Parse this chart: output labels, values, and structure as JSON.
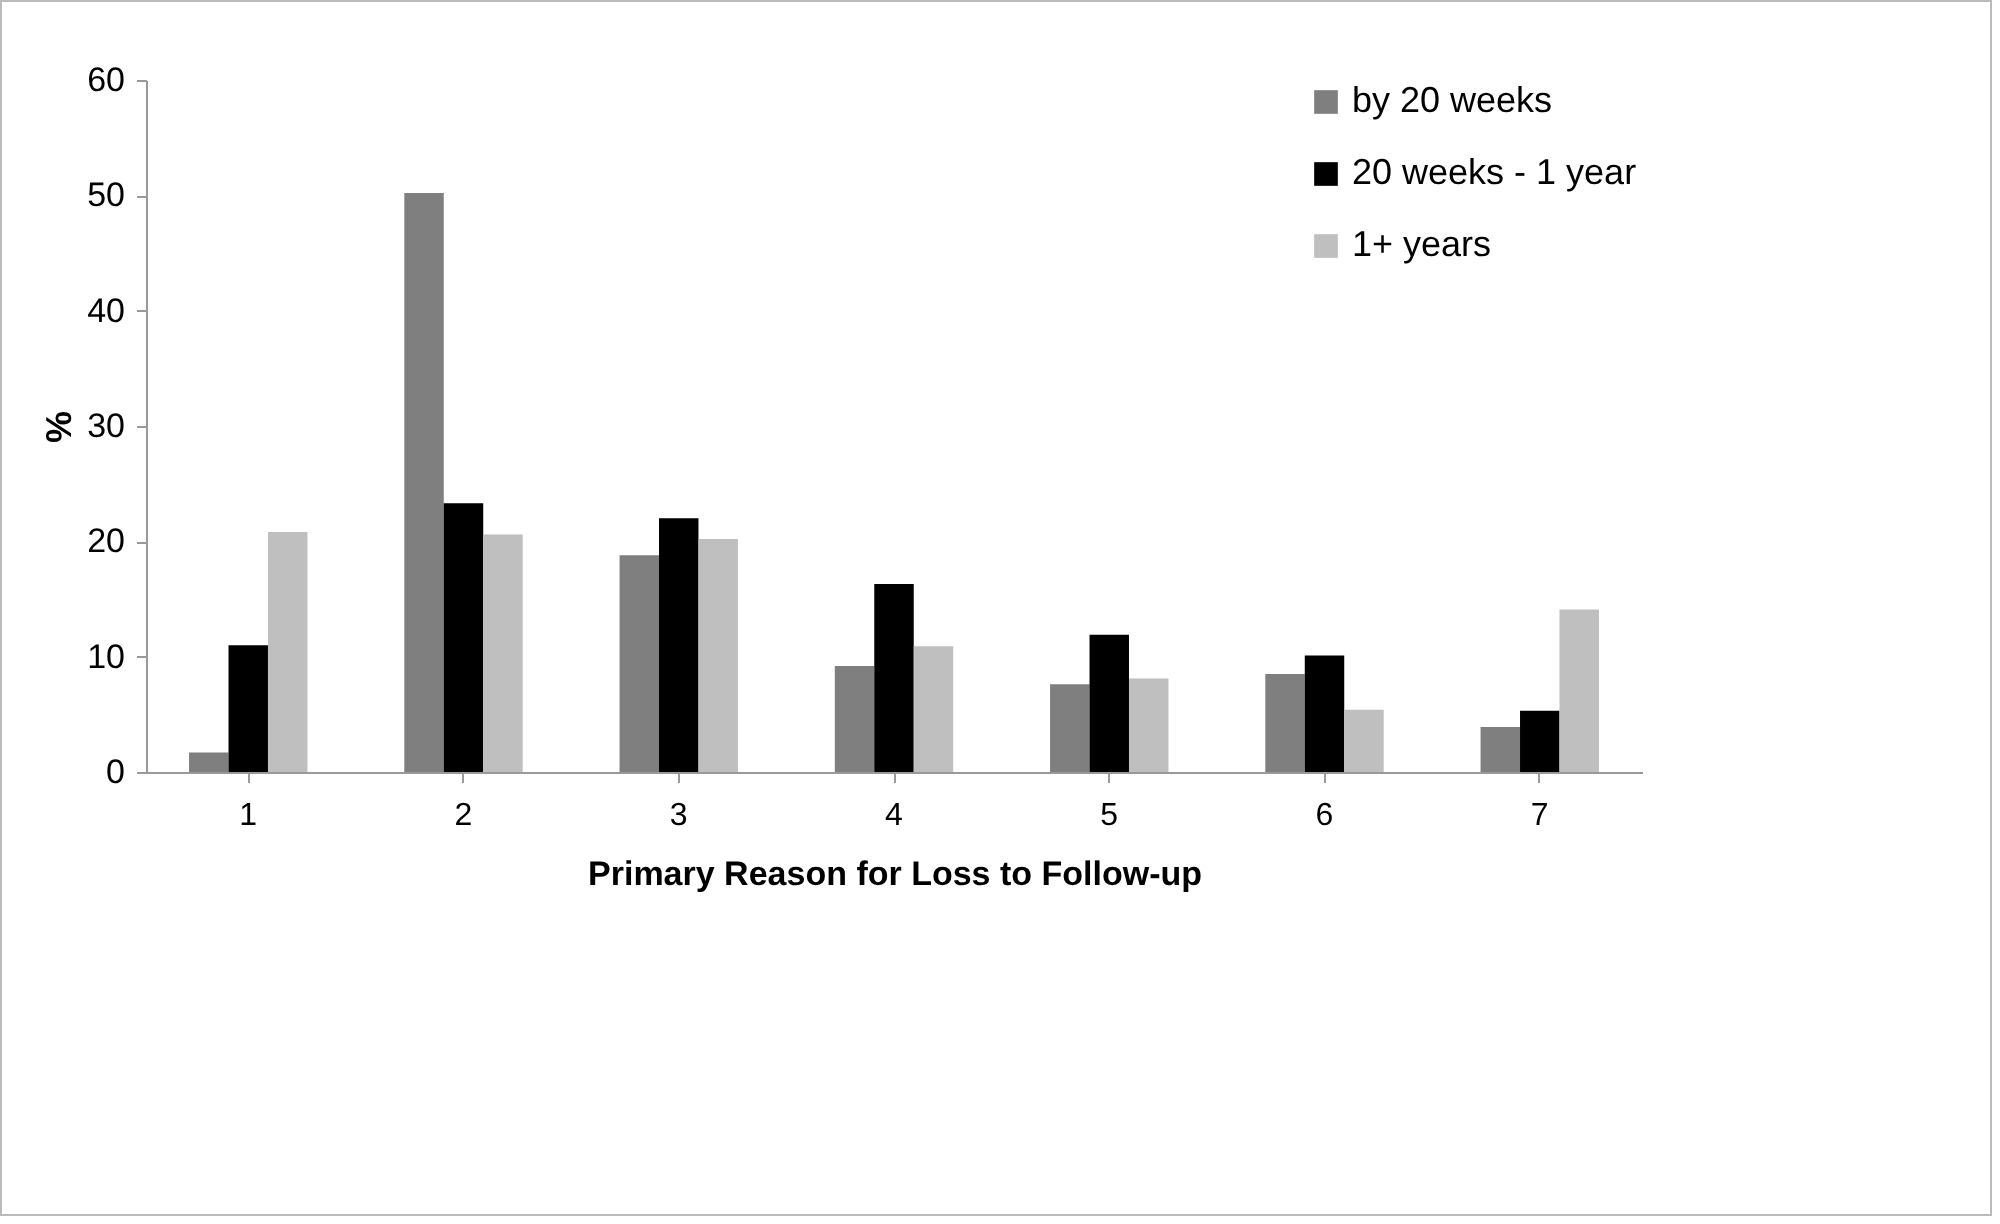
{
  "chart_data": {
    "type": "bar",
    "xlabel": "Primary Reason for Loss to Follow-up",
    "ylabel": "%",
    "categories": [
      "1",
      "2",
      "3",
      "4",
      "5",
      "6",
      "7"
    ],
    "series": [
      {
        "name": "by 20 weeks",
        "color": "#7f7f7f",
        "values": [
          1.7,
          50.2,
          18.8,
          9.2,
          7.6,
          8.5,
          3.9
        ]
      },
      {
        "name": "20 weeks - 1 year",
        "color": "#000000",
        "values": [
          11.0,
          23.3,
          22.0,
          16.3,
          11.9,
          10.1,
          5.3
        ]
      },
      {
        "name": "1+ years",
        "color": "#bfbfbf",
        "values": [
          20.8,
          20.6,
          20.2,
          10.9,
          8.1,
          5.4,
          14.1
        ]
      }
    ],
    "ylim": [
      0,
      60
    ],
    "yticks": [
      0,
      10,
      20,
      30,
      40,
      50,
      60
    ],
    "grid": false,
    "legend": "top right"
  }
}
